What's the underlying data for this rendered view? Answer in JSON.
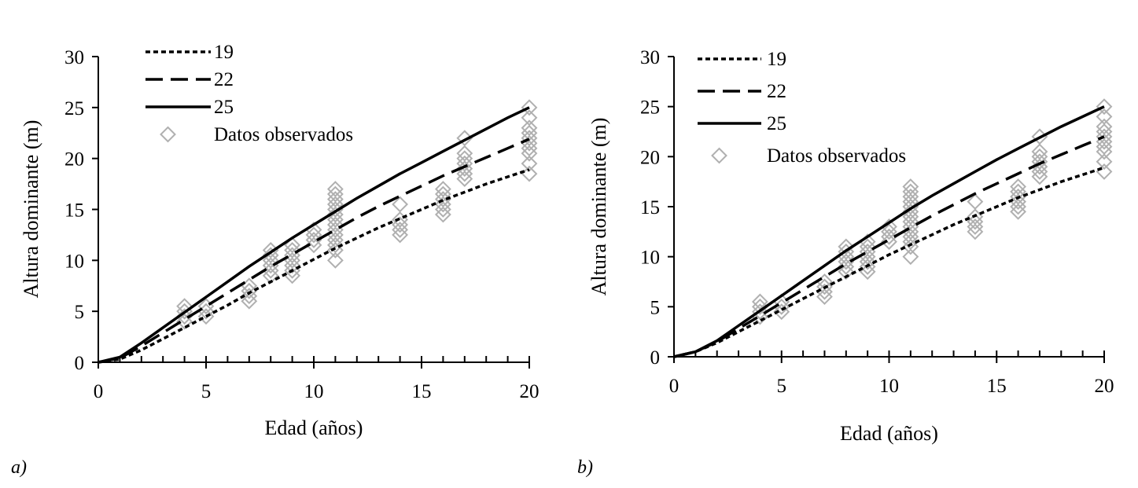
{
  "chart_data": [
    {
      "panel_label": "a)",
      "type": "line",
      "xlabel": "Edad (años)",
      "ylabel": "Altura dominante (m)",
      "xlim": [
        0,
        20
      ],
      "ylim": [
        0,
        30
      ],
      "xticks": [
        0,
        5,
        10,
        15,
        20
      ],
      "yticks": [
        0,
        5,
        10,
        15,
        20,
        25,
        30
      ],
      "grid": false,
      "legend_position": "top-left",
      "series": [
        {
          "name": "19",
          "style": "dotted",
          "x": [
            0,
            1,
            2,
            3,
            4,
            5,
            6,
            7,
            8,
            9,
            10,
            11,
            12,
            13,
            14,
            15,
            16,
            17,
            18,
            19,
            20
          ],
          "values": [
            0,
            0.3,
            1.2,
            2.3,
            3.4,
            4.5,
            5.6,
            6.8,
            7.9,
            9.0,
            10.1,
            11.2,
            12.2,
            13.2,
            14.1,
            15.0,
            15.9,
            16.7,
            17.5,
            18.2,
            18.9
          ]
        },
        {
          "name": "22",
          "style": "dashed",
          "x": [
            0,
            1,
            2,
            3,
            4,
            5,
            6,
            7,
            8,
            9,
            10,
            11,
            12,
            13,
            14,
            15,
            16,
            17,
            18,
            19,
            20
          ],
          "values": [
            0,
            0.4,
            1.6,
            2.9,
            4.2,
            5.5,
            6.8,
            8.1,
            9.4,
            10.6,
            11.8,
            13.0,
            14.2,
            15.3,
            16.3,
            17.3,
            18.3,
            19.2,
            20.1,
            21.0,
            21.9
          ]
        },
        {
          "name": "25",
          "style": "solid",
          "x": [
            0,
            1,
            2,
            3,
            4,
            5,
            6,
            7,
            8,
            9,
            10,
            11,
            12,
            13,
            14,
            15,
            16,
            17,
            18,
            19,
            20
          ],
          "values": [
            0,
            0.5,
            1.9,
            3.4,
            4.9,
            6.4,
            7.9,
            9.4,
            10.8,
            12.2,
            13.5,
            14.8,
            16.1,
            17.3,
            18.5,
            19.6,
            20.7,
            21.8,
            22.9,
            24.0,
            25.0
          ]
        },
        {
          "name": "Datos observados",
          "style": "marker-diamond",
          "points": [
            [
              4,
              4.0
            ],
            [
              4,
              4.5
            ],
            [
              4,
              5.0
            ],
            [
              4,
              5.5
            ],
            [
              5,
              4.5
            ],
            [
              5,
              5.0
            ],
            [
              5,
              5.5
            ],
            [
              7,
              6.0
            ],
            [
              7,
              6.5
            ],
            [
              7,
              7.0
            ],
            [
              7,
              7.5
            ],
            [
              8,
              8.5
            ],
            [
              8,
              9.0
            ],
            [
              8,
              9.5
            ],
            [
              8,
              10.0
            ],
            [
              8,
              10.5
            ],
            [
              8,
              11.0
            ],
            [
              9,
              8.5
            ],
            [
              9,
              9.0
            ],
            [
              9,
              9.5
            ],
            [
              9,
              10.0
            ],
            [
              9,
              10.5
            ],
            [
              9,
              11.0
            ],
            [
              9,
              11.5
            ],
            [
              10,
              11.5
            ],
            [
              10,
              12.0
            ],
            [
              10,
              12.5
            ],
            [
              10,
              13.0
            ],
            [
              11,
              10.0
            ],
            [
              11,
              11.0
            ],
            [
              11,
              11.5
            ],
            [
              11,
              12.0
            ],
            [
              11,
              12.5
            ],
            [
              11,
              13.0
            ],
            [
              11,
              13.5
            ],
            [
              11,
              14.0
            ],
            [
              11,
              14.5
            ],
            [
              11,
              15.0
            ],
            [
              11,
              15.5
            ],
            [
              11,
              16.0
            ],
            [
              11,
              16.5
            ],
            [
              11,
              17.0
            ],
            [
              14,
              12.5
            ],
            [
              14,
              13.0
            ],
            [
              14,
              13.5
            ],
            [
              14,
              14.0
            ],
            [
              14,
              15.5
            ],
            [
              16,
              14.5
            ],
            [
              16,
              15.0
            ],
            [
              16,
              15.5
            ],
            [
              16,
              16.0
            ],
            [
              16,
              16.5
            ],
            [
              16,
              17.0
            ],
            [
              17,
              18.0
            ],
            [
              17,
              18.5
            ],
            [
              17,
              19.0
            ],
            [
              17,
              19.5
            ],
            [
              17,
              20.0
            ],
            [
              17,
              20.5
            ],
            [
              17,
              22.0
            ],
            [
              20,
              18.5
            ],
            [
              20,
              19.5
            ],
            [
              20,
              20.5
            ],
            [
              20,
              21.0
            ],
            [
              20,
              21.5
            ],
            [
              20,
              22.0
            ],
            [
              20,
              22.5
            ],
            [
              20,
              23.0
            ],
            [
              20,
              24.0
            ],
            [
              20,
              25.0
            ]
          ]
        }
      ]
    },
    {
      "panel_label": "b)",
      "type": "line",
      "xlabel": "Edad (años)",
      "ylabel": "Altura dominante (m)",
      "xlim": [
        0,
        20
      ],
      "ylim": [
        0,
        30
      ],
      "xticks": [
        0,
        5,
        10,
        15,
        20
      ],
      "yticks": [
        0,
        5,
        10,
        15,
        20,
        25,
        30
      ],
      "grid": false,
      "legend_position": "top-left",
      "series": [
        {
          "name": "19",
          "style": "dotted",
          "x": [
            0,
            1,
            2,
            3,
            4,
            5,
            6,
            7,
            8,
            9,
            10,
            11,
            12,
            13,
            14,
            15,
            16,
            17,
            18,
            19,
            20
          ],
          "values": [
            0,
            0.5,
            1.4,
            2.5,
            3.6,
            4.7,
            5.8,
            6.9,
            8.0,
            9.1,
            10.2,
            11.2,
            12.2,
            13.2,
            14.1,
            15.0,
            15.9,
            16.7,
            17.5,
            18.2,
            18.9
          ]
        },
        {
          "name": "22",
          "style": "dashed",
          "x": [
            0,
            1,
            2,
            3,
            4,
            5,
            6,
            7,
            8,
            9,
            10,
            11,
            12,
            13,
            14,
            15,
            16,
            17,
            18,
            19,
            20
          ],
          "values": [
            0,
            0.5,
            1.5,
            2.8,
            4.1,
            5.4,
            6.7,
            8.0,
            9.3,
            10.5,
            11.7,
            12.9,
            14.1,
            15.2,
            16.3,
            17.3,
            18.3,
            19.3,
            20.2,
            21.1,
            22.0
          ]
        },
        {
          "name": "25",
          "style": "solid",
          "x": [
            0,
            1,
            2,
            3,
            4,
            5,
            6,
            7,
            8,
            9,
            10,
            11,
            12,
            13,
            14,
            15,
            16,
            17,
            18,
            19,
            20
          ],
          "values": [
            0,
            0.5,
            1.6,
            3.1,
            4.6,
            6.1,
            7.6,
            9.1,
            10.6,
            12.0,
            13.4,
            14.8,
            16.1,
            17.3,
            18.5,
            19.7,
            20.8,
            21.9,
            23.0,
            24.0,
            25.0
          ]
        },
        {
          "name": "Datos observados",
          "style": "marker-diamond",
          "points": [
            [
              4,
              4.0
            ],
            [
              4,
              4.5
            ],
            [
              4,
              5.0
            ],
            [
              4,
              5.5
            ],
            [
              5,
              4.5
            ],
            [
              5,
              5.0
            ],
            [
              5,
              5.5
            ],
            [
              7,
              6.0
            ],
            [
              7,
              6.5
            ],
            [
              7,
              7.0
            ],
            [
              7,
              7.5
            ],
            [
              8,
              8.5
            ],
            [
              8,
              9.0
            ],
            [
              8,
              9.5
            ],
            [
              8,
              10.0
            ],
            [
              8,
              10.5
            ],
            [
              8,
              11.0
            ],
            [
              9,
              8.5
            ],
            [
              9,
              9.0
            ],
            [
              9,
              9.5
            ],
            [
              9,
              10.0
            ],
            [
              9,
              10.5
            ],
            [
              9,
              11.0
            ],
            [
              9,
              11.5
            ],
            [
              10,
              11.5
            ],
            [
              10,
              12.0
            ],
            [
              10,
              12.5
            ],
            [
              10,
              13.0
            ],
            [
              11,
              10.0
            ],
            [
              11,
              11.0
            ],
            [
              11,
              11.5
            ],
            [
              11,
              12.0
            ],
            [
              11,
              12.5
            ],
            [
              11,
              13.0
            ],
            [
              11,
              13.5
            ],
            [
              11,
              14.0
            ],
            [
              11,
              14.5
            ],
            [
              11,
              15.0
            ],
            [
              11,
              15.5
            ],
            [
              11,
              16.0
            ],
            [
              11,
              16.5
            ],
            [
              11,
              17.0
            ],
            [
              14,
              12.5
            ],
            [
              14,
              13.0
            ],
            [
              14,
              13.5
            ],
            [
              14,
              14.0
            ],
            [
              14,
              15.5
            ],
            [
              16,
              14.5
            ],
            [
              16,
              15.0
            ],
            [
              16,
              15.5
            ],
            [
              16,
              16.0
            ],
            [
              16,
              16.5
            ],
            [
              16,
              17.0
            ],
            [
              17,
              18.0
            ],
            [
              17,
              18.5
            ],
            [
              17,
              19.0
            ],
            [
              17,
              19.5
            ],
            [
              17,
              20.0
            ],
            [
              17,
              20.5
            ],
            [
              17,
              22.0
            ],
            [
              20,
              18.5
            ],
            [
              20,
              19.5
            ],
            [
              20,
              20.5
            ],
            [
              20,
              21.0
            ],
            [
              20,
              21.5
            ],
            [
              20,
              22.0
            ],
            [
              20,
              22.5
            ],
            [
              20,
              23.0
            ],
            [
              20,
              24.0
            ],
            [
              20,
              25.0
            ]
          ]
        }
      ]
    }
  ]
}
